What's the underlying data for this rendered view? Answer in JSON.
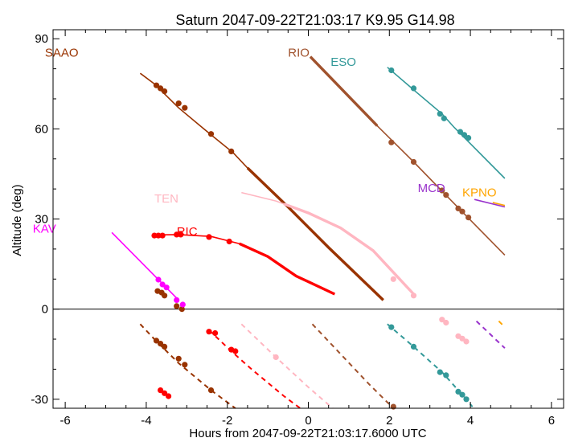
{
  "chart_data": {
    "type": "line",
    "title": "Saturn 2047-09-22T21:03:17  K9.95  G14.98",
    "xlabel": "Hours from 2047-09-22T21:03:17.6000 UTC",
    "ylabel": "Altitude (deg)",
    "xlim": [
      -6.3,
      6.3
    ],
    "ylim": [
      -33,
      93
    ],
    "xticks": [
      -6,
      -4,
      -2,
      0,
      2,
      4,
      6
    ],
    "yticks": [
      -30,
      0,
      30,
      60,
      90
    ],
    "horizon_line": 0,
    "series": [
      {
        "name": "SAAO",
        "color": "#993300",
        "label_at": [
          -6.5,
          84
        ],
        "above": [
          [
            -4.15,
            78.5
          ],
          [
            -3.8,
            75
          ],
          [
            -3.2,
            67
          ],
          [
            -2.4,
            58
          ],
          [
            -1.85,
            52
          ],
          [
            -1.5,
            47
          ],
          [
            -0.5,
            34
          ],
          [
            0.5,
            20.5
          ],
          [
            1.85,
            3
          ]
        ],
        "above_thick_from": -1.5,
        "markers": [
          [
            -3.75,
            74.5
          ],
          [
            -3.65,
            73.5
          ],
          [
            -3.55,
            72.5
          ],
          [
            -3.2,
            68.5
          ],
          [
            -3.05,
            67
          ],
          [
            -2.4,
            58.3
          ],
          [
            -1.9,
            52.5
          ],
          [
            -3.72,
            6
          ],
          [
            -3.62,
            5.5
          ],
          [
            -3.55,
            4.5
          ],
          [
            -3.25,
            1
          ],
          [
            -3.12,
            0
          ]
        ],
        "below": [
          [
            -4.15,
            -5
          ],
          [
            -3.8,
            -10
          ],
          [
            -3.2,
            -18
          ],
          [
            -2.4,
            -27
          ],
          [
            -1.8,
            -34
          ]
        ],
        "below_markers": [
          [
            -3.75,
            -10.5
          ],
          [
            -3.65,
            -11.5
          ],
          [
            -3.55,
            -12.5
          ],
          [
            -3.2,
            -16.5
          ],
          [
            -3.05,
            -18.5
          ],
          [
            -2.4,
            -27
          ]
        ]
      },
      {
        "name": "RIO",
        "color": "#a0522d",
        "label_at": [
          -0.5,
          84
        ],
        "above": [
          [
            0.05,
            84
          ],
          [
            1.7,
            61
          ],
          [
            2.6,
            49
          ],
          [
            3.5,
            36.5
          ],
          [
            4.85,
            18
          ]
        ],
        "above_thick_to": 1.7,
        "markers": [
          [
            2.05,
            55.5
          ],
          [
            2.6,
            49
          ],
          [
            3.3,
            39.5
          ],
          [
            3.4,
            38
          ],
          [
            3.7,
            33.5
          ],
          [
            3.8,
            32.5
          ],
          [
            3.95,
            30.5
          ]
        ],
        "below": [
          [
            0.1,
            -5
          ],
          [
            0.8,
            -15
          ],
          [
            1.5,
            -25
          ],
          [
            2.1,
            -33
          ]
        ],
        "below_markers": [
          [
            2.1,
            -32.5
          ]
        ]
      },
      {
        "name": "ESO",
        "color": "#339999",
        "label_at": [
          0.55,
          81
        ],
        "above": [
          [
            1.95,
            80.5
          ],
          [
            2.6,
            73
          ],
          [
            3.3,
            65
          ],
          [
            3.6,
            60.5
          ],
          [
            4.85,
            43.5
          ]
        ],
        "markers": [
          [
            2.05,
            79.5
          ],
          [
            2.6,
            73.5
          ],
          [
            3.25,
            65
          ],
          [
            3.35,
            63.5
          ],
          [
            3.75,
            59
          ],
          [
            3.85,
            58
          ],
          [
            3.95,
            57
          ]
        ],
        "below": [
          [
            1.95,
            -5
          ],
          [
            2.6,
            -12.5
          ],
          [
            3.3,
            -21
          ],
          [
            3.9,
            -30
          ],
          [
            4.05,
            -32.5
          ]
        ],
        "below_markers": [
          [
            2.05,
            -6
          ],
          [
            2.6,
            -12.5
          ],
          [
            3.25,
            -21
          ],
          [
            3.4,
            -22
          ],
          [
            3.7,
            -27.5
          ],
          [
            3.8,
            -28.5
          ],
          [
            3.9,
            -30
          ]
        ]
      },
      {
        "name": "TEN",
        "color": "#ffb6c1",
        "label_at": [
          -3.8,
          35.5
        ],
        "above": [
          [
            -1.65,
            38.8
          ],
          [
            -0.8,
            36
          ],
          [
            0,
            32
          ],
          [
            0.8,
            27
          ],
          [
            1.6,
            19.5
          ],
          [
            2.6,
            5
          ]
        ],
        "above_thick_from": -0.6,
        "markers": [
          [
            2.1,
            10
          ],
          [
            2.6,
            4.5
          ],
          [
            3.3,
            -3.5
          ],
          [
            3.4,
            -4.5
          ],
          [
            3.7,
            -9
          ],
          [
            3.8,
            -9.8
          ],
          [
            3.9,
            -10.8
          ]
        ],
        "below": [
          [
            -1.65,
            -5
          ],
          [
            -0.8,
            -16
          ],
          [
            0,
            -26
          ],
          [
            0.6,
            -33
          ]
        ],
        "below_markers": [
          [
            -0.8,
            -16
          ]
        ]
      },
      {
        "name": "MCD",
        "color": "#9933cc",
        "label_at": [
          2.7,
          39
        ],
        "above": [
          [
            4.1,
            36.5
          ],
          [
            4.85,
            34
          ]
        ],
        "markers": [],
        "below": [
          [
            4.15,
            -4
          ],
          [
            4.85,
            -13
          ]
        ],
        "below_markers": []
      },
      {
        "name": "KPNO",
        "color": "#ffa500",
        "label_at": [
          3.8,
          37.5
        ],
        "above": [
          [
            4.55,
            35.5
          ],
          [
            4.85,
            34.5
          ]
        ],
        "markers": [],
        "below": [
          [
            4.7,
            -4
          ],
          [
            4.85,
            -6
          ]
        ],
        "below_markers": []
      },
      {
        "name": "KAV",
        "color": "#ff00ff",
        "label_at": [
          -6.8,
          25.5
        ],
        "above": [
          [
            -4.85,
            25.5
          ],
          [
            -3.2,
            3
          ]
        ],
        "markers": [
          [
            -3.7,
            9.8
          ],
          [
            -3.6,
            8.2
          ],
          [
            -3.5,
            7.2
          ],
          [
            -3.25,
            3
          ],
          [
            -3.1,
            1.5
          ]
        ],
        "below": [],
        "below_markers": []
      },
      {
        "name": "RIC",
        "color": "#ff0000",
        "label_at": [
          -3.25,
          24.5
        ],
        "above": [
          [
            -3.8,
            24.7
          ],
          [
            -3.2,
            24.8
          ],
          [
            -2.4,
            24.2
          ],
          [
            -1.7,
            21.8
          ],
          [
            -1.0,
            17.5
          ],
          [
            -0.3,
            11
          ],
          [
            0.65,
            5
          ]
        ],
        "above_thick_from": -1.7,
        "markers": [
          [
            -3.8,
            24.5
          ],
          [
            -3.7,
            24.5
          ],
          [
            -3.6,
            24.5
          ],
          [
            -3.25,
            24.8
          ],
          [
            -3.15,
            24.8
          ],
          [
            -2.45,
            24
          ],
          [
            -1.95,
            22.5
          ],
          [
            -3.65,
            -27
          ],
          [
            -3.55,
            -28
          ],
          [
            -3.45,
            -29
          ]
        ],
        "below": [
          [
            -2.45,
            -7
          ],
          [
            -1.9,
            -14
          ],
          [
            -1.4,
            -20
          ],
          [
            -0.6,
            -29
          ],
          [
            -0.2,
            -33
          ]
        ],
        "below_markers": [
          [
            -2.45,
            -7.5
          ],
          [
            -2.3,
            -8
          ],
          [
            -1.9,
            -13.5
          ],
          [
            -1.8,
            -14
          ]
        ]
      }
    ]
  }
}
